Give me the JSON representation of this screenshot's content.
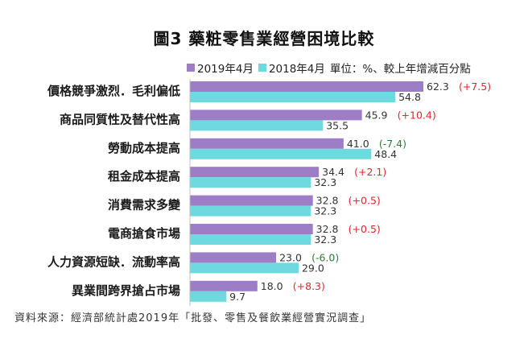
{
  "chart_data": {
    "type": "bar",
    "orientation": "horizontal",
    "title": "圖3  藥粧零售業經營困境比較",
    "unit_note": "單位：%、較上年增減百分點",
    "categories": [
      "價格競爭激烈．毛利偏低",
      "商品同質性及替代性高",
      "勞動成本提高",
      "租金成本提高",
      "消費需求多變",
      "電商搶食市場",
      "人力資源短缺．流動率高",
      "異業間跨界搶占市場"
    ],
    "series": [
      {
        "name": "2019年4月",
        "color": "#9d7dc5",
        "values": [
          62.3,
          45.9,
          41.0,
          34.4,
          32.8,
          32.8,
          23.0,
          18.0
        ],
        "value_labels": [
          "62.3",
          "45.9",
          "41.0",
          "34.4",
          "32.8",
          "32.8",
          "23.0",
          "18.0"
        ],
        "changes": [
          "(+7.5)",
          "(+10.4)",
          "(-7.4)",
          "(+2.1)",
          "(+0.5)",
          "(+0.5)",
          "(-6.0)",
          "(+8.3)"
        ]
      },
      {
        "name": "2018年4月",
        "color": "#6ed9de",
        "values": [
          54.8,
          35.5,
          48.4,
          32.3,
          32.3,
          32.3,
          29.0,
          9.7
        ],
        "value_labels": [
          "54.8",
          "35.5",
          "48.4",
          "32.3",
          "32.3",
          "32.3",
          "29.0",
          "9.7"
        ]
      }
    ],
    "change_colors": {
      "positive": "#e0262b",
      "negative": "#2e7d32"
    },
    "xlim": [
      0,
      62.3
    ],
    "grid": false,
    "legend_position": "top"
  },
  "source_note": "資料來源：經濟部統計處2019年「批發、零售及餐飲業經營實況調查」"
}
